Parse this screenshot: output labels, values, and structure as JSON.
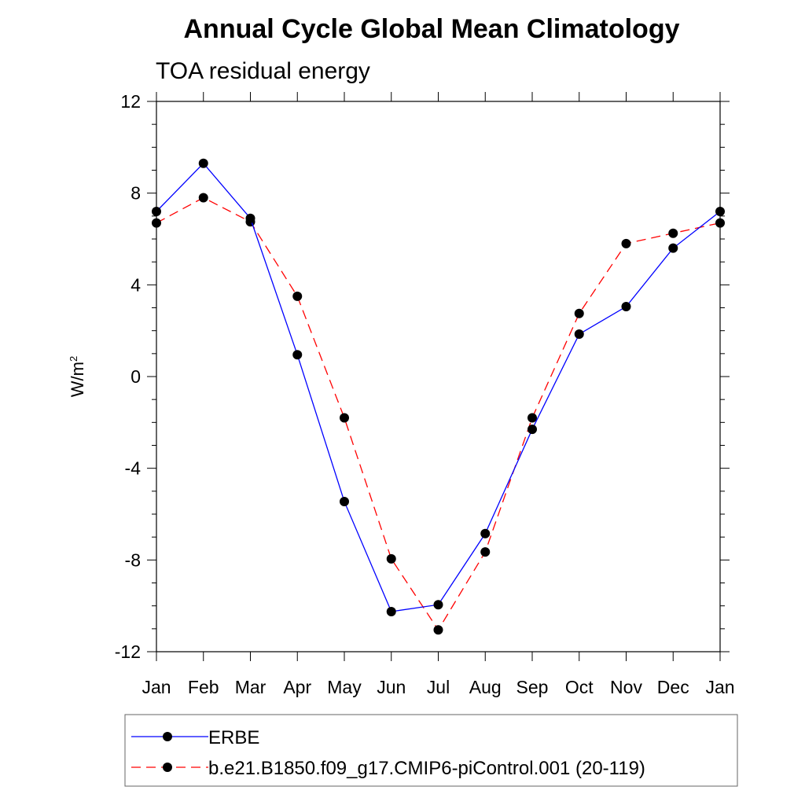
{
  "chart_data": {
    "type": "line",
    "title": "Annual Cycle Global Mean Climatology",
    "subtitle": "TOA residual energy",
    "ylabel": "W/m",
    "ylabel_sup": "2",
    "xlabel": "",
    "categories": [
      "Jan",
      "Feb",
      "Mar",
      "Apr",
      "May",
      "Jun",
      "Jul",
      "Aug",
      "Sep",
      "Oct",
      "Nov",
      "Dec",
      "Jan"
    ],
    "ylim": [
      -12,
      12
    ],
    "yticks": [
      -12,
      -8,
      -4,
      0,
      4,
      8,
      12
    ],
    "ytick_labels": [
      "-12",
      "-8",
      "-4",
      "0",
      "4",
      "8",
      "12"
    ],
    "grid": false,
    "legend_position": "bottom",
    "series": [
      {
        "name": "ERBE",
        "color": "#0000ff",
        "dash": "solid",
        "values": [
          7.2,
          9.3,
          6.9,
          0.95,
          -5.45,
          -10.25,
          -9.95,
          -6.85,
          -2.3,
          1.85,
          3.05,
          5.6,
          7.2
        ]
      },
      {
        "name": "b.e21.B1850.f09_g17.CMIP6-piControl.001 (20-119)",
        "color": "#ff0000",
        "dash": "dashed",
        "values": [
          6.7,
          7.8,
          6.75,
          3.5,
          -1.8,
          -7.95,
          -11.05,
          -7.65,
          -1.8,
          2.75,
          5.8,
          6.25,
          6.7
        ]
      }
    ]
  }
}
